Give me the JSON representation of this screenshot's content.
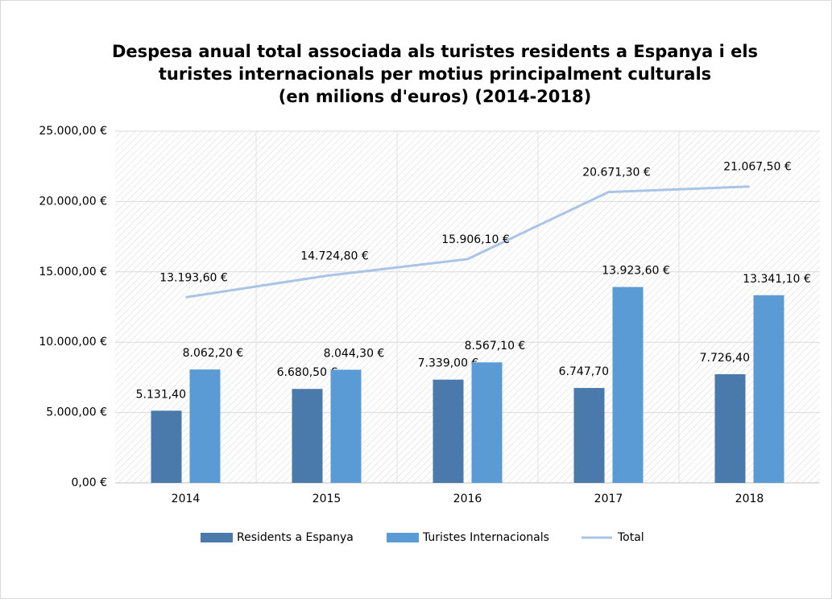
{
  "chart_data": {
    "type": "bar",
    "title": [
      "Despesa anual total associada als turistes residents a Espanya i els",
      "turistes internacionals  per motius principalment culturals",
      "(en milions d'euros) (2014-2018)"
    ],
    "categories": [
      "2014",
      "2015",
      "2016",
      "2017",
      "2018"
    ],
    "series": [
      {
        "name": "Residents a Espanya",
        "type": "bar",
        "color": "#4a7aab",
        "values": [
          5131.4,
          6680.5,
          7339.0,
          6747.7,
          7726.4
        ],
        "value_labels": [
          "5.131,40 €",
          "6.680,50 €",
          "7.339,00 €",
          "6.747,70 €",
          "7.726,40 €"
        ]
      },
      {
        "name": "Turistes Internacionals",
        "type": "bar",
        "color": "#5b9bd5",
        "values": [
          8062.2,
          8044.3,
          8567.1,
          13923.6,
          13341.1
        ],
        "value_labels": [
          "8.062,20 €",
          "8.044,30 €",
          "8.567,10 €",
          "13.923,60 €",
          "13.341,10 €"
        ]
      },
      {
        "name": "Total",
        "type": "line",
        "color": "#a9c4e6",
        "values": [
          13193.6,
          14724.8,
          15906.1,
          20671.3,
          21067.5
        ],
        "value_labels": [
          "13.193,60 €",
          "14.724,80 €",
          "15.906,10 €",
          "20.671,30 €",
          "21.067,50 €"
        ]
      }
    ],
    "ylim": [
      0,
      25000
    ],
    "yticks": [
      {
        "value": 0,
        "label": "0,00 €"
      },
      {
        "value": 5000,
        "label": "5.000,00 €"
      },
      {
        "value": 10000,
        "label": "10.000,00 €"
      },
      {
        "value": 15000,
        "label": "15.000,00 €"
      },
      {
        "value": 20000,
        "label": "20.000,00 €"
      },
      {
        "value": 25000,
        "label": "25.000,00 €"
      }
    ],
    "grid": true,
    "legend": "bottom"
  }
}
